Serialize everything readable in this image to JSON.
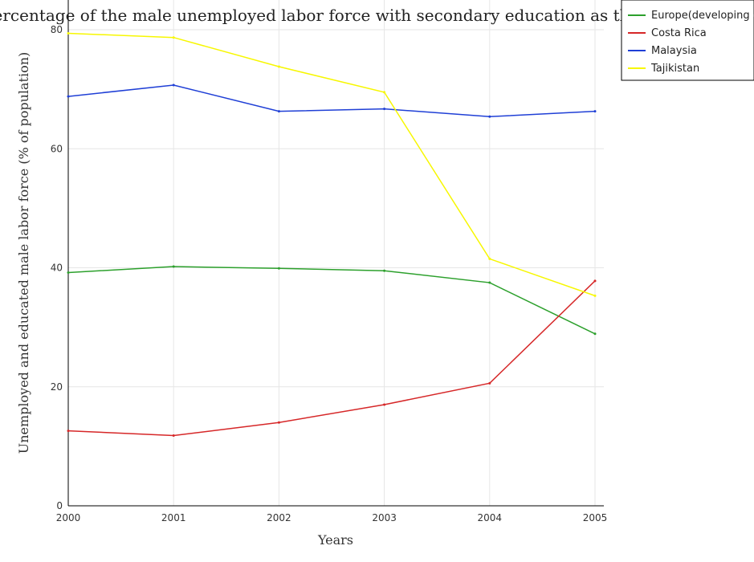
{
  "chart_data": {
    "type": "line",
    "title": "Percentage of the male unemployed labor force with secondary education as their highest grade",
    "xlabel": "Years",
    "ylabel": "Unemployed and educated male labor force (% of population)",
    "categories": [
      "2000",
      "2001",
      "2002",
      "2003",
      "2004",
      "2005"
    ],
    "ylim": [
      0,
      85
    ],
    "yticks": [
      0,
      20,
      40,
      60,
      80
    ],
    "grid": true,
    "legend_position": "top-right",
    "series": [
      {
        "name": "Europe(developing only)",
        "color": "#2ca02c",
        "values": [
          39.2,
          40.2,
          39.9,
          39.5,
          37.5,
          28.9
        ]
      },
      {
        "name": "Costa Rica",
        "color": "#d62728",
        "values": [
          12.6,
          11.8,
          14.0,
          17.0,
          20.6,
          37.8
        ]
      },
      {
        "name": "Malaysia",
        "color": "#1f3fd6",
        "values": [
          68.8,
          70.7,
          66.3,
          66.7,
          65.4,
          66.3
        ]
      },
      {
        "name": "Tajikistan",
        "color": "#f7f700",
        "values": [
          79.4,
          78.7,
          73.8,
          69.5,
          41.5,
          35.3
        ]
      }
    ]
  }
}
